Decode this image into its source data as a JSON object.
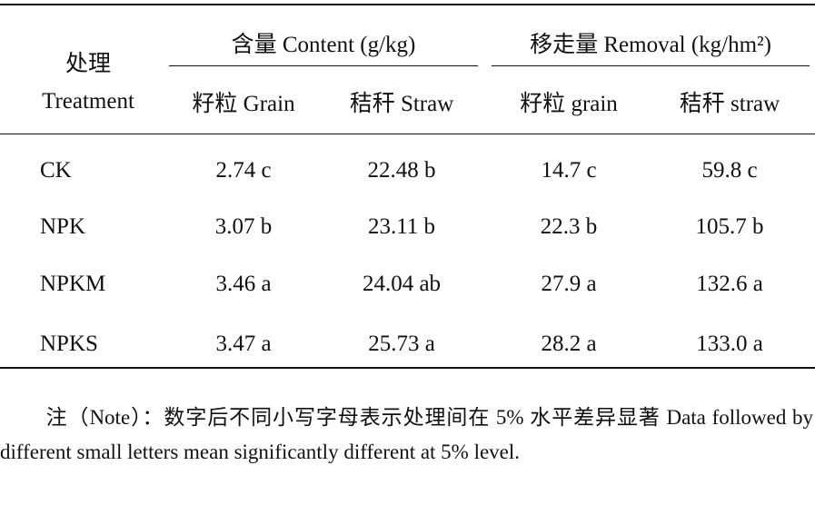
{
  "table": {
    "header": {
      "row_label": [
        "处理",
        "Treatment"
      ],
      "groups": [
        {
          "label": "含量 Content (g/kg)",
          "columns": [
            "籽粒 Grain",
            "秸秆 Straw"
          ]
        },
        {
          "label": "移走量 Removal (kg/hm²)",
          "columns": [
            "籽粒 grain",
            "秸秆 straw"
          ]
        }
      ]
    },
    "rows": [
      [
        "CK",
        "2.74 c",
        "22.48 b",
        "14.7 c",
        "59.8 c"
      ],
      [
        "NPK",
        "3.07 b",
        "23.11 b",
        "22.3 b",
        "105.7 b"
      ],
      [
        "NPKM",
        "3.46 a",
        "24.04 ab",
        "27.9 a",
        "132.6 a"
      ],
      [
        "NPKS",
        "3.47 a",
        "25.73 a",
        "28.2 a",
        "133.0 a"
      ]
    ]
  },
  "note": "注（Note）：数字后不同小写字母表示处理间在 5% 水平差异显著 Data followed by different small letters mean significantly different at 5% level."
}
